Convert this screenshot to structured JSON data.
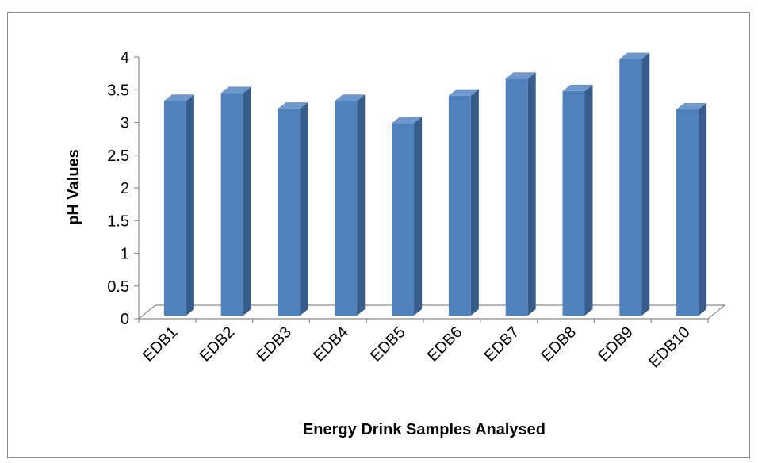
{
  "chart_data": {
    "type": "bar",
    "style": "3d-column",
    "title": "",
    "xlabel": "Energy Drink Samples Analysed",
    "ylabel": "pH Values",
    "categories": [
      "EDB1",
      "EDB2",
      "EDB3",
      "EDB4",
      "EDB5",
      "EDB6",
      "EDB7",
      "EDB8",
      "EDB9",
      "EDB10"
    ],
    "values": [
      3.33,
      3.45,
      3.21,
      3.33,
      2.99,
      3.41,
      3.67,
      3.48,
      3.97,
      3.2
    ],
    "ylim": [
      0,
      4
    ],
    "yticks": [
      "0",
      "0.5",
      "1",
      "1.5",
      "2",
      "2.5",
      "3",
      "3.5",
      "4"
    ],
    "grid": false,
    "legend": "none",
    "colors": {
      "bar_front": "#4f81bd",
      "bar_side": "#385d8a",
      "bar_top": "#6e98cb",
      "axis": "#8c8c8c",
      "frame": "#8a8a8a"
    }
  }
}
